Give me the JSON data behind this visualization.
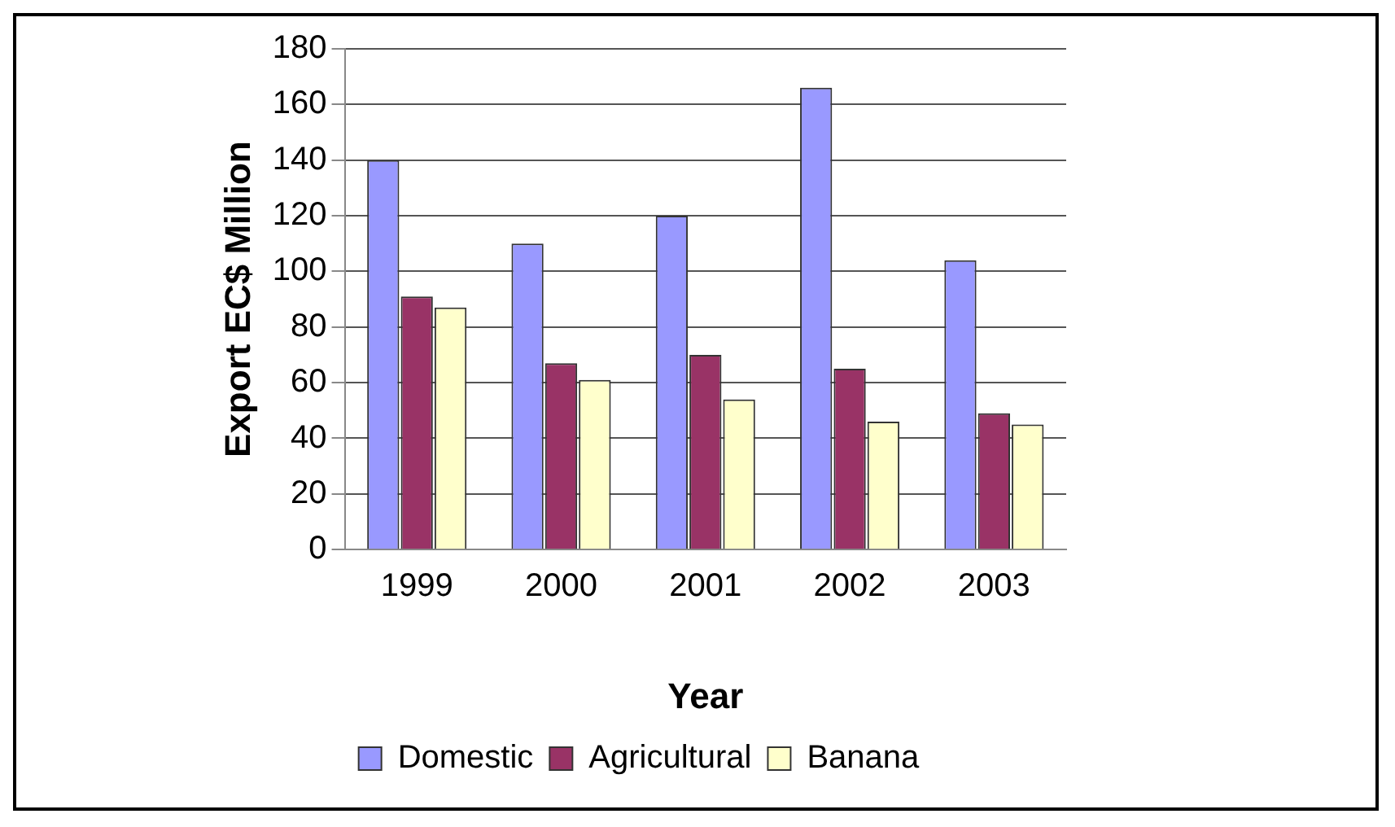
{
  "chart_data": {
    "type": "bar",
    "xlabel": "Year",
    "ylabel": "Export EC$ Million",
    "categories": [
      "1999",
      "2000",
      "2001",
      "2002",
      "2003"
    ],
    "series": [
      {
        "name": "Domestic",
        "color": "#9999ff",
        "values": [
          140,
          110,
          120,
          166,
          104
        ]
      },
      {
        "name": "Agricultural",
        "color": "#993366",
        "values": [
          91,
          67,
          70,
          65,
          49
        ]
      },
      {
        "name": "Banana",
        "color": "#ffffcc",
        "values": [
          87,
          61,
          54,
          46,
          45
        ]
      }
    ],
    "ylim": [
      0,
      180
    ],
    "yticks": [
      0,
      20,
      40,
      60,
      80,
      100,
      120,
      140,
      160,
      180
    ],
    "grid": "y",
    "legend": "bottom"
  }
}
